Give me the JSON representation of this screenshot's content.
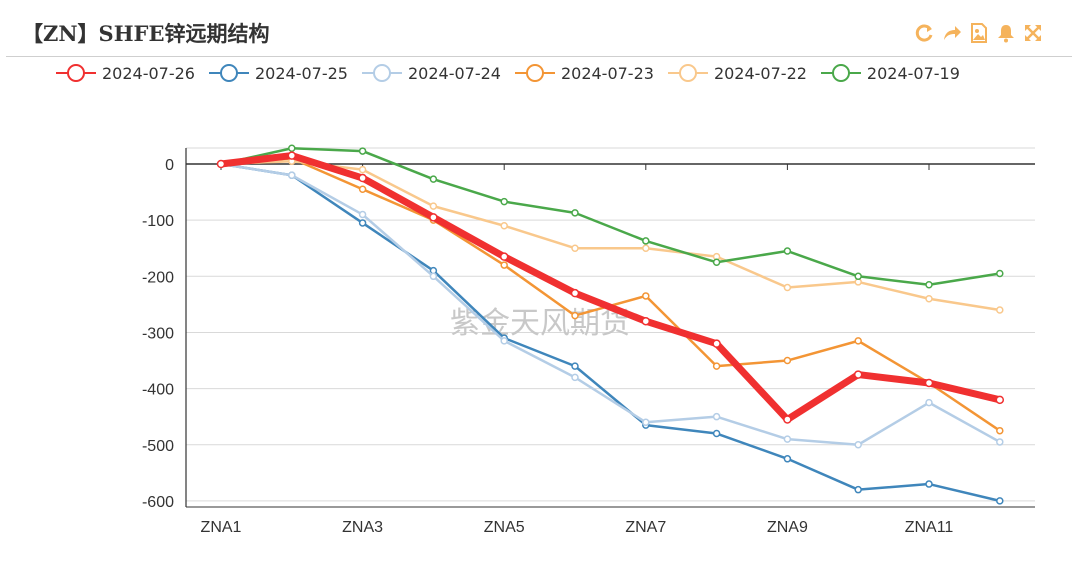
{
  "header": {
    "title": "【ZN】SHFE锌远期结构"
  },
  "toolbar": {
    "color": "#f5b35c",
    "tools": [
      {
        "name": "refresh-icon"
      },
      {
        "name": "share-icon"
      },
      {
        "name": "image-icon"
      },
      {
        "name": "bell-icon"
      },
      {
        "name": "expand-icon"
      }
    ]
  },
  "watermark": "紫金天风期货",
  "chart_data": {
    "type": "line",
    "title": "",
    "xlabel": "",
    "ylabel": "",
    "categories": [
      "ZNA1",
      "ZNA2",
      "ZNA3",
      "ZNA4",
      "ZNA5",
      "ZNA6",
      "ZNA7",
      "ZNA8",
      "ZNA9",
      "ZNA10",
      "ZNA11",
      "ZNA12"
    ],
    "x_tick_labels": [
      "ZNA1",
      "ZNA3",
      "ZNA5",
      "ZNA7",
      "ZNA9",
      "ZNA11"
    ],
    "ylim": [
      -600,
      0
    ],
    "yticks": [
      0,
      -100,
      -200,
      -300,
      -400,
      -500,
      -600
    ],
    "grid": true,
    "legend_position": "top-left",
    "series": [
      {
        "name": "2024-07-26",
        "color": "#f03030",
        "bold": true,
        "values": [
          0,
          15,
          -25,
          -95,
          -165,
          -230,
          -280,
          -320,
          -455,
          -375,
          -390,
          -420
        ]
      },
      {
        "name": "2024-07-25",
        "color": "#3f86bb",
        "values": [
          0,
          -20,
          -105,
          -190,
          -310,
          -360,
          -465,
          -480,
          -525,
          -580,
          -570,
          -600
        ]
      },
      {
        "name": "2024-07-24",
        "color": "#b4cde6",
        "values": [
          0,
          -20,
          -90,
          -200,
          -315,
          -380,
          -460,
          -450,
          -490,
          -500,
          -425,
          -495
        ]
      },
      {
        "name": "2024-07-23",
        "color": "#f39535",
        "values": [
          0,
          10,
          -45,
          -100,
          -180,
          -270,
          -235,
          -360,
          -350,
          -315,
          -390,
          -475
        ]
      },
      {
        "name": "2024-07-22",
        "color": "#f9c88c",
        "values": [
          0,
          5,
          -10,
          -75,
          -110,
          -150,
          -150,
          -165,
          -220,
          -210,
          -240,
          -260
        ]
      },
      {
        "name": "2024-07-19",
        "color": "#4aa84a",
        "values": [
          0,
          28,
          23,
          -27,
          -67,
          -87,
          -137,
          -175,
          -155,
          -200,
          -215,
          -195
        ]
      }
    ]
  }
}
